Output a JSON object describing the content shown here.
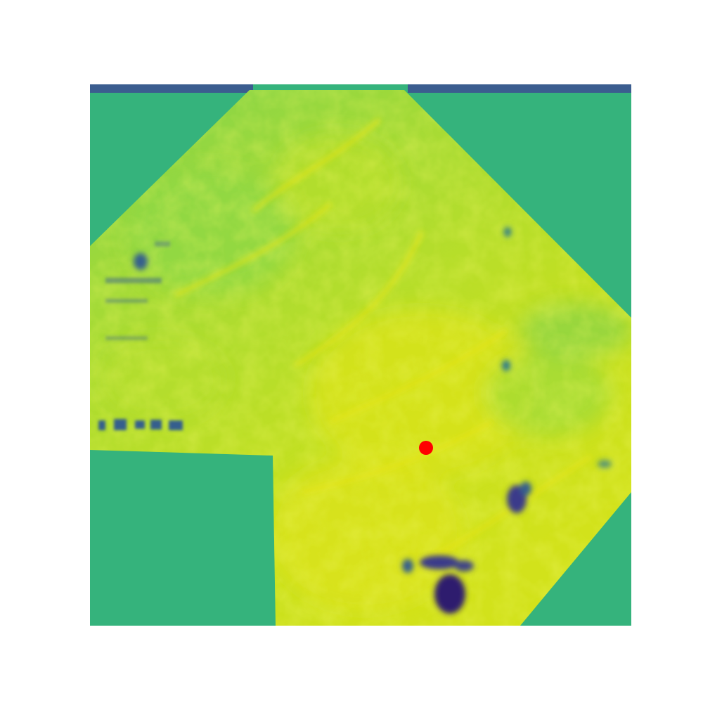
{
  "figure": {
    "kind": "heightmap-image",
    "colormap": "viridis",
    "background_color": "#ffffff",
    "fill_color": "#35b37c",
    "edge_color": "#3b5d8f",
    "marker": {
      "shape": "circle",
      "color": "#ff0000"
    },
    "axes_visible": false
  }
}
